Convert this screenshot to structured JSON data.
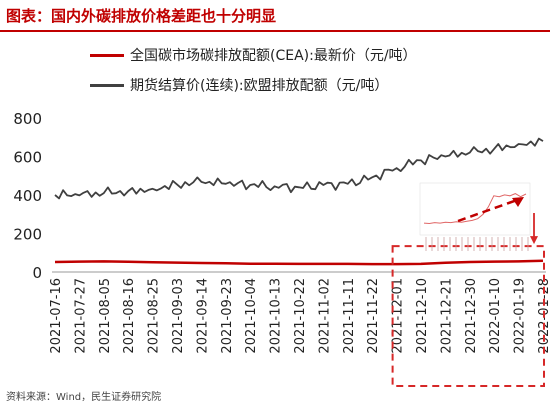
{
  "figure": {
    "title": "图表：国内外碳排放价格差距也十分明显",
    "source": "资料来源：Wind，民生证券研究院"
  },
  "colors": {
    "title": "#c00000",
    "cea_line": "#c00000",
    "eua_line": "#404040",
    "highlight": "#d62828",
    "inset_line": "#e06666"
  },
  "chart_data": {
    "type": "line",
    "title": "",
    "xlabel": "",
    "ylabel": "",
    "ylim": [
      0,
      800
    ],
    "yticks": [
      0,
      200,
      400,
      600,
      800
    ],
    "grid": false,
    "legend_position": "top",
    "x_tick_labels": [
      "2021-07-16",
      "2021-07-27",
      "2021-08-05",
      "2021-08-16",
      "2021-08-25",
      "2021-09-03",
      "2021-09-14",
      "2021-09-23",
      "2021-10-04",
      "2021-10-13",
      "2021-10-22",
      "2021-11-02",
      "2021-11-11",
      "2021-11-22",
      "2021-12-01",
      "2021-12-10",
      "2021-12-21",
      "2021-12-30",
      "2022-01-10",
      "2022-01-19",
      "2022-01-28"
    ],
    "series": [
      {
        "name": "全国碳市场碳排放配额(CEA):最新价（元/吨）",
        "values": [
          52,
          54,
          55,
          53,
          51,
          49,
          47,
          45,
          43,
          43,
          42,
          42,
          42,
          41,
          41,
          42,
          48,
          52,
          54,
          55,
          58
        ]
      },
      {
        "name": "期货结算价(连续):欧盟排放配额（元/吨）",
        "values": [
          400,
          398,
          410,
          420,
          432,
          455,
          468,
          458,
          452,
          445,
          440,
          452,
          458,
          492,
          540,
          580,
          600,
          620,
          640,
          665,
          680
        ]
      }
    ]
  }
}
